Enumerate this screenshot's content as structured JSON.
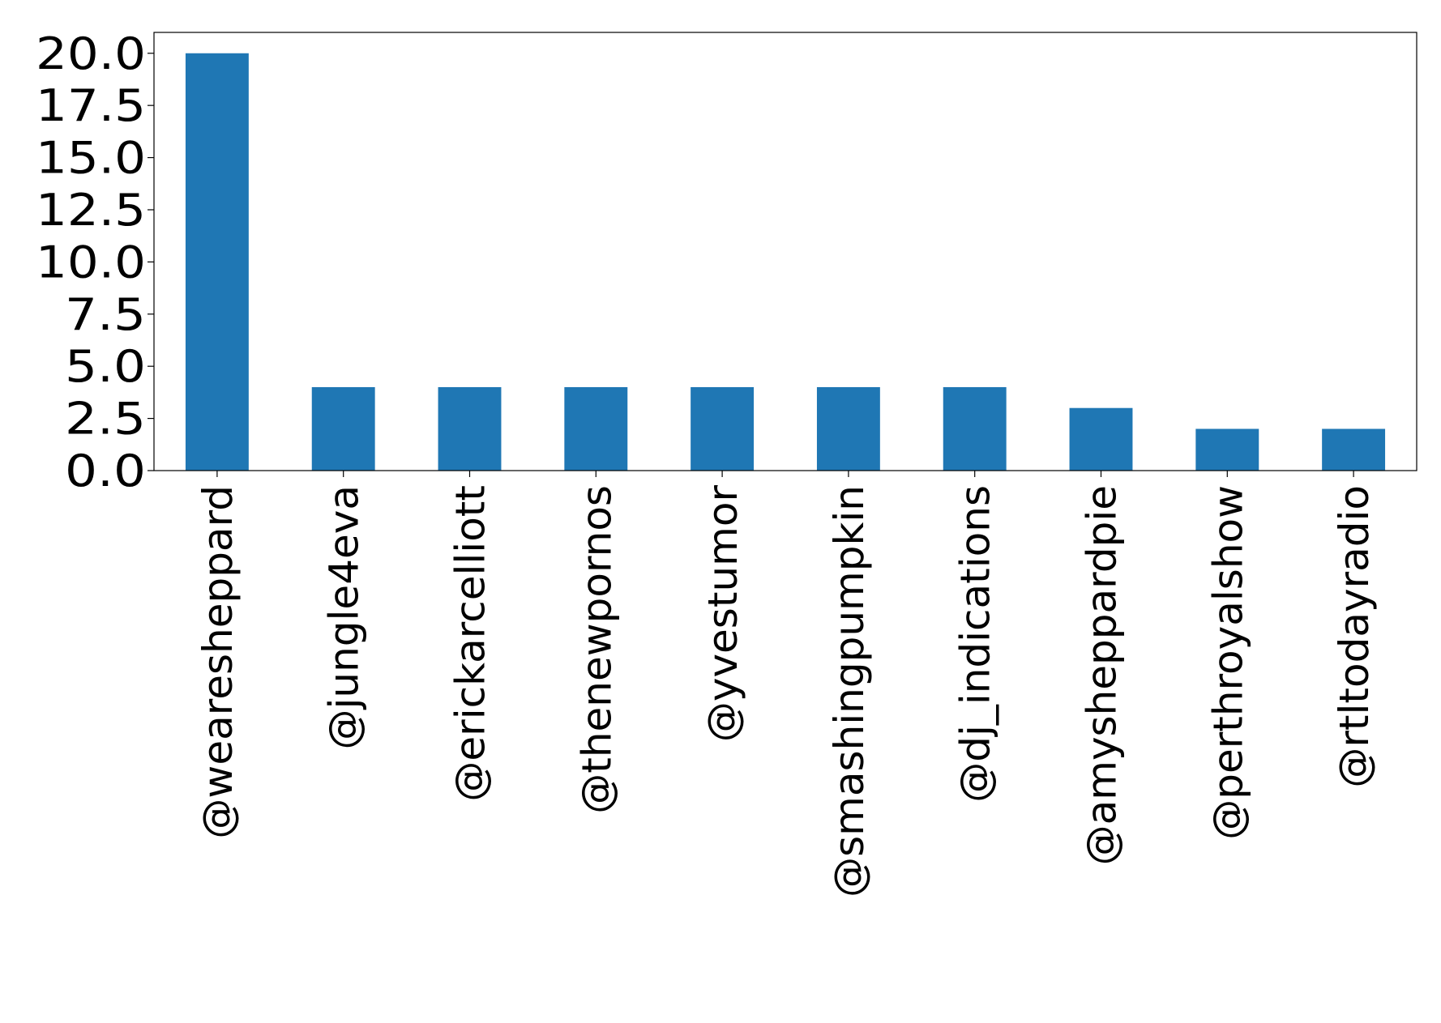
{
  "chart_data": {
    "type": "bar",
    "title": "",
    "xlabel": "",
    "ylabel": "",
    "categories": [
      "@weareshеppard",
      "@jungle4eva",
      "@erickarcelliott",
      "@thenewpornos",
      "@yvestumor",
      "@smashingpumpkin",
      "@dj_indications",
      "@amysheppardpie",
      "@perthroyalshow",
      "@rtltodayradio"
    ],
    "values": [
      20,
      4,
      4,
      4,
      4,
      4,
      4,
      3,
      2,
      2
    ],
    "ylim": [
      0,
      21
    ],
    "yticks": [
      "0.0",
      "2.5",
      "5.0",
      "7.5",
      "10.0",
      "12.5",
      "15.0",
      "17.5",
      "20.0"
    ],
    "grid": false,
    "legend": "none",
    "bar_color": "#1f77b4"
  }
}
